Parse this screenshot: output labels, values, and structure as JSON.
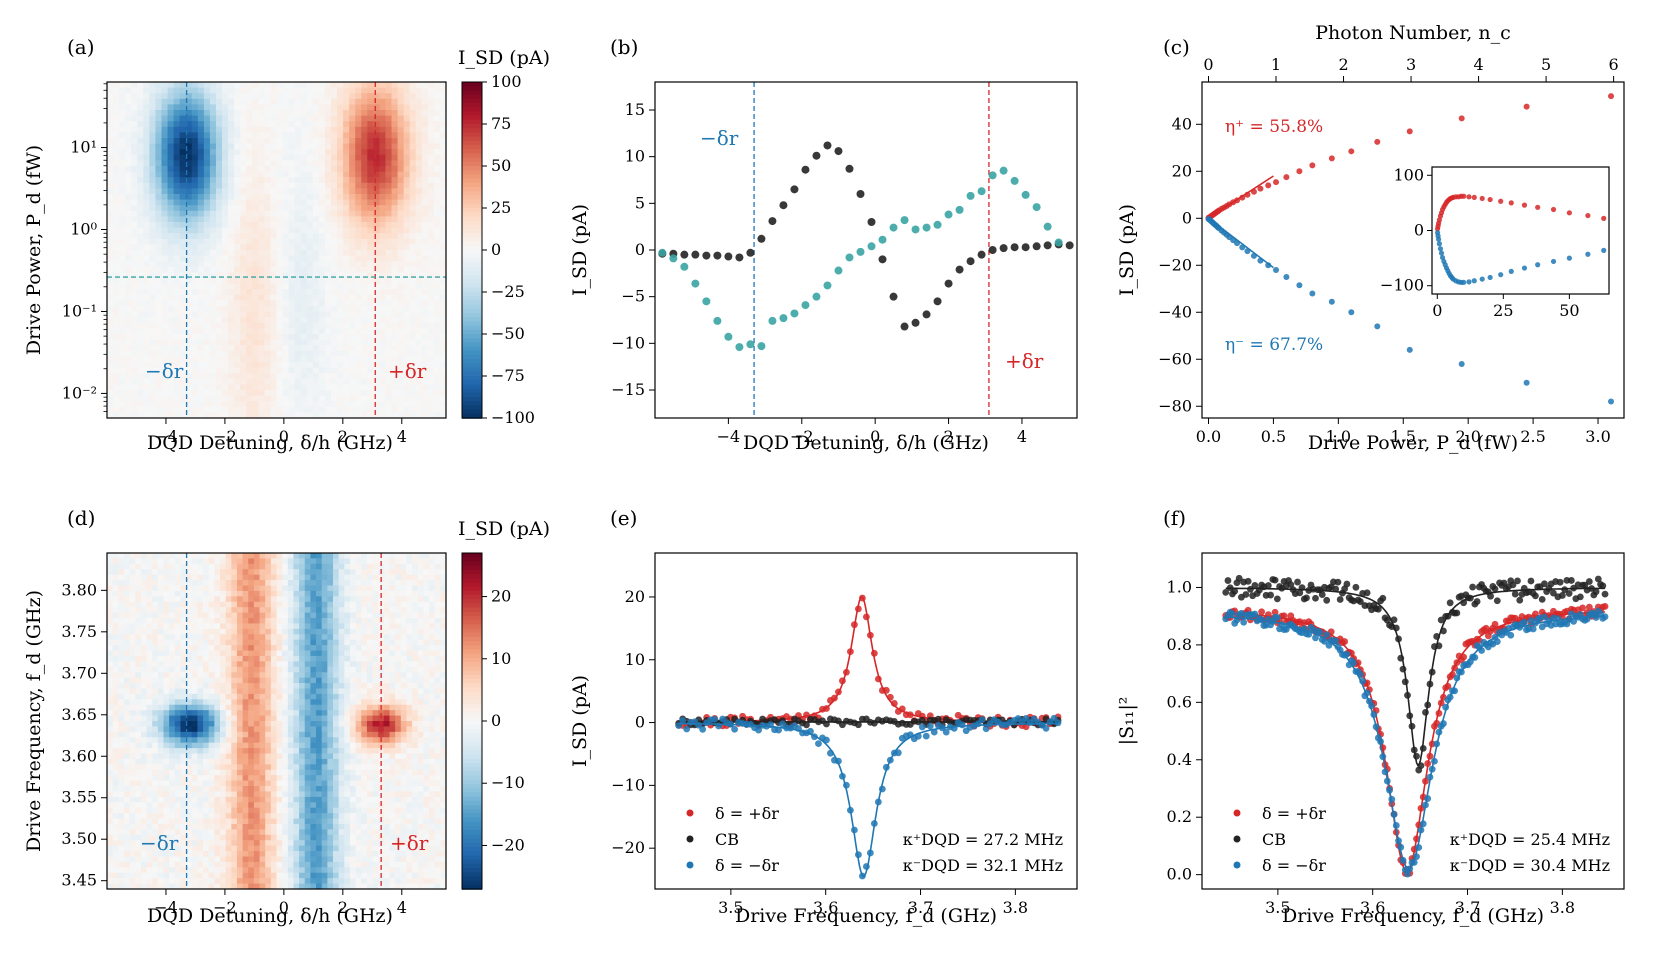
{
  "figure": {
    "colors": {
      "red": "#d62728",
      "blue": "#1f77b4",
      "teal": "#3aa3a3",
      "black": "#222222"
    }
  },
  "chart_data": [
    {
      "panel": "(a)",
      "type": "heatmap",
      "xlabel": "DQD Detuning, δ/h (GHz)",
      "ylabel": "Drive Power, P_d (fW)",
      "xlim": [
        -6,
        5.5
      ],
      "ylim_log10": [
        -2.3,
        1.8
      ],
      "xticks": [
        "−4",
        "−2",
        "0",
        "2",
        "4"
      ],
      "xtick_values": [
        -4,
        -2,
        0,
        2,
        4
      ],
      "yticks": [
        "10⁻²",
        "10⁻¹",
        "10⁰",
        "10¹"
      ],
      "ytick_values": [
        -2,
        -1,
        0,
        1
      ],
      "colorbar": {
        "label": "I_SD (pA)",
        "range": [
          -100,
          100
        ],
        "ticks": [
          "100",
          "75",
          "50",
          "25",
          "0",
          "−25",
          "−50",
          "−75",
          "−100"
        ],
        "tick_values": [
          100,
          75,
          50,
          25,
          0,
          -25,
          -50,
          -75,
          -100
        ]
      },
      "features": [
        {
          "name": "minus-blob",
          "x": -3.3,
          "y_log10": 0.9,
          "sx": 0.75,
          "sy": 0.55,
          "amp": -100
        },
        {
          "name": "plus-blob",
          "x": 3.1,
          "y_log10": 0.9,
          "sx": 0.8,
          "sy": 0.6,
          "amp": 75
        },
        {
          "name": "low-pos-stripe",
          "x": -1.0,
          "y_log10": -1.0,
          "sx": 0.6,
          "sy": 1.3,
          "amp": 14
        },
        {
          "name": "low-neg-stripe",
          "x": 0.6,
          "y_log10": -0.8,
          "sx": 0.6,
          "sy": 1.2,
          "amp": -9
        }
      ],
      "vlines": [
        {
          "x": -3.3,
          "label": "−δr",
          "color": "#1f77b4"
        },
        {
          "x": 3.1,
          "label": "+δr",
          "color": "#d62728"
        }
      ],
      "hline": {
        "y_log10": -0.58,
        "color": "#3aa3a3"
      }
    },
    {
      "panel": "(b)",
      "type": "scatter",
      "xlabel": "DQD Detuning, δ/h (GHz)",
      "ylabel": "I_SD (pA)",
      "xlim": [
        -6,
        5.5
      ],
      "ylim": [
        -18,
        18
      ],
      "xticks": [
        "−4",
        "−2",
        "0",
        "2",
        "4"
      ],
      "xtick_values": [
        -4,
        -2,
        0,
        2,
        4
      ],
      "yticks": [
        "15",
        "10",
        "5",
        "0",
        "−5",
        "−10",
        "−15"
      ],
      "ytick_values": [
        15,
        10,
        5,
        0,
        -5,
        -10,
        -15
      ],
      "vlines": [
        {
          "x": -3.3,
          "label": "−δr",
          "color": "#1f77b4"
        },
        {
          "x": 3.1,
          "label": "+δr",
          "color": "#d62728"
        }
      ],
      "series": [
        {
          "name": "black",
          "color": "#222222",
          "x": [
            -5.8,
            -5.5,
            -5.2,
            -4.9,
            -4.6,
            -4.3,
            -4.0,
            -3.7,
            -3.4,
            -3.1,
            -2.8,
            -2.5,
            -2.2,
            -1.9,
            -1.6,
            -1.3,
            -1.0,
            -0.7,
            -0.4,
            -0.1,
            0.2,
            0.5,
            0.8,
            1.1,
            1.4,
            1.7,
            2.0,
            2.3,
            2.6,
            2.9,
            3.2,
            3.5,
            3.8,
            4.1,
            4.4,
            4.7,
            5.0,
            5.3
          ],
          "y": [
            -0.4,
            -0.4,
            -0.5,
            -0.5,
            -0.6,
            -0.6,
            -0.7,
            -0.8,
            -0.3,
            1.2,
            3.1,
            4.8,
            6.5,
            8.6,
            10.1,
            11.2,
            10.6,
            8.7,
            6.0,
            3.0,
            -1.0,
            -5.0,
            -8.2,
            -7.8,
            -6.9,
            -5.5,
            -3.6,
            -2.1,
            -1.2,
            -0.5,
            0.0,
            0.2,
            0.3,
            0.3,
            0.4,
            0.5,
            0.6,
            0.5
          ]
        },
        {
          "name": "teal",
          "color": "#3aa3a3",
          "x": [
            -5.8,
            -5.5,
            -5.2,
            -4.9,
            -4.6,
            -4.3,
            -4.0,
            -3.7,
            -3.4,
            -3.1,
            -2.8,
            -2.5,
            -2.2,
            -1.9,
            -1.6,
            -1.3,
            -1.0,
            -0.7,
            -0.4,
            -0.1,
            0.2,
            0.5,
            0.8,
            1.1,
            1.4,
            1.7,
            2.0,
            2.3,
            2.6,
            2.9,
            3.2,
            3.5,
            3.8,
            4.1,
            4.4,
            4.7,
            5.0
          ],
          "y": [
            -0.3,
            -0.9,
            -1.8,
            -3.6,
            -5.5,
            -7.6,
            -9.3,
            -10.4,
            -10.1,
            -10.3,
            -7.6,
            -7.3,
            -6.8,
            -5.9,
            -5.0,
            -3.8,
            -2.2,
            -0.8,
            -0.2,
            0.4,
            1.1,
            2.4,
            3.2,
            2.2,
            2.4,
            2.7,
            3.8,
            4.3,
            5.8,
            6.3,
            8.0,
            8.5,
            7.4,
            5.9,
            4.6,
            2.5,
            0.8
          ]
        }
      ]
    },
    {
      "panel": "(c)",
      "type": "scatter",
      "xlabel": "Drive Power, P_d (fW)",
      "ylabel": "I_SD (pA)",
      "x2label": "Photon Number, n_c",
      "xlim": [
        -0.05,
        3.2
      ],
      "ylim": [
        -85,
        58
      ],
      "xticks": [
        "0.0",
        "0.5",
        "1.0",
        "1.5",
        "2.0",
        "2.5",
        "3.0"
      ],
      "xtick_values": [
        0,
        0.5,
        1,
        1.5,
        2,
        2.5,
        3
      ],
      "x2ticks": [
        "0",
        "1",
        "2",
        "3",
        "4",
        "5",
        "6"
      ],
      "x2tick_values": [
        0,
        0.52,
        1.04,
        1.56,
        2.08,
        2.6,
        3.12
      ],
      "yticks": [
        "40",
        "20",
        "0",
        "−20",
        "−40",
        "−60",
        "−80"
      ],
      "ytick_values": [
        40,
        20,
        0,
        -20,
        -40,
        -60,
        -80
      ],
      "annotations": [
        {
          "text": "η⁺ = 55.8%",
          "color": "#d62728"
        },
        {
          "text": "η⁻ = 67.7%",
          "color": "#1f77b4"
        }
      ],
      "series": [
        {
          "name": "eta-plus",
          "color": "#d62728",
          "x": [
            0.0,
            0.01,
            0.02,
            0.03,
            0.04,
            0.05,
            0.06,
            0.07,
            0.08,
            0.1,
            0.12,
            0.14,
            0.16,
            0.19,
            0.22,
            0.26,
            0.3,
            0.35,
            0.4,
            0.46,
            0.52,
            0.6,
            0.7,
            0.8,
            0.95,
            1.1,
            1.3,
            1.55,
            1.95,
            2.45,
            3.1
          ],
          "y": [
            0.2,
            0.5,
            0.9,
            1.3,
            1.7,
            2.1,
            2.5,
            2.9,
            3.3,
            4.0,
            4.6,
            5.2,
            5.9,
            6.8,
            7.6,
            8.8,
            10.0,
            11.3,
            12.6,
            14.0,
            15.4,
            17.5,
            20.0,
            22.5,
            25.5,
            28.5,
            32.5,
            37.0,
            42.5,
            47.5,
            52.0
          ]
        },
        {
          "name": "eta-minus",
          "color": "#1f77b4",
          "x": [
            0.0,
            0.01,
            0.02,
            0.03,
            0.04,
            0.05,
            0.06,
            0.07,
            0.08,
            0.1,
            0.12,
            0.14,
            0.16,
            0.19,
            0.22,
            0.26,
            0.3,
            0.35,
            0.4,
            0.46,
            0.52,
            0.6,
            0.7,
            0.8,
            0.95,
            1.1,
            1.3,
            1.55,
            1.95,
            2.45,
            3.1
          ],
          "y": [
            -0.3,
            -0.7,
            -1.2,
            -1.7,
            -2.2,
            -2.7,
            -3.2,
            -3.7,
            -4.2,
            -5.2,
            -6.1,
            -7.0,
            -8.0,
            -9.3,
            -10.6,
            -12.4,
            -14.0,
            -16.0,
            -18.0,
            -20.0,
            -22.0,
            -25.0,
            -28.5,
            -32.0,
            -35.5,
            -40.0,
            -46.0,
            -56.0,
            -62.0,
            -70.0,
            -78.0
          ]
        }
      ],
      "fit_lines": [
        {
          "color": "#d62728",
          "x": [
            0,
            0.5
          ],
          "y": [
            0,
            18
          ]
        },
        {
          "color": "#1f77b4",
          "x": [
            0,
            0.5
          ],
          "y": [
            0,
            -21
          ]
        }
      ],
      "inset": {
        "xlim": [
          -2,
          65
        ],
        "ylim": [
          -115,
          115
        ],
        "xticks": [
          "0",
          "25",
          "50"
        ],
        "xtick_values": [
          0,
          25,
          50
        ],
        "yticks": [
          "100",
          "0",
          "−100"
        ],
        "ytick_values": [
          100,
          0,
          -100
        ],
        "series": [
          {
            "color": "#d62728",
            "x": [
              0.1,
              0.3,
              0.5,
              0.8,
              1.2,
              1.6,
              2.0,
              2.5,
              3.0,
              3.5,
              4.0,
              4.5,
              5.0,
              5.5,
              6.0,
              7,
              8,
              9,
              10,
              12,
              14,
              17,
              20,
              24,
              28,
              33,
              38,
              44,
              50,
              57,
              63
            ],
            "y": [
              3,
              8,
              13,
              19,
              26,
              32,
              38,
              43,
              47,
              51,
              54,
              56,
              58,
              59,
              60,
              61,
              61,
              62,
              62,
              61,
              60,
              58,
              56,
              53,
              50,
              46,
              42,
              38,
              32,
              27,
              22
            ]
          },
          {
            "color": "#1f77b4",
            "x": [
              0.1,
              0.3,
              0.5,
              0.8,
              1.2,
              1.6,
              2.0,
              2.5,
              3.0,
              3.5,
              4.0,
              4.5,
              5.0,
              5.5,
              6.0,
              7,
              8,
              9,
              10,
              12,
              14,
              17,
              20,
              24,
              28,
              33,
              38,
              44,
              50,
              57,
              63
            ],
            "y": [
              -4,
              -10,
              -16,
              -24,
              -33,
              -41,
              -49,
              -56,
              -62,
              -68,
              -73,
              -78,
              -82,
              -85,
              -88,
              -91,
              -93,
              -94,
              -94,
              -93,
              -91,
              -88,
              -85,
              -80,
              -74,
              -68,
              -62,
              -56,
              -50,
              -43,
              -36
            ]
          }
        ]
      }
    },
    {
      "panel": "(d)",
      "type": "heatmap",
      "xlabel": "DQD Detuning, δ/h (GHz)",
      "ylabel": "Drive Frequency, f_d (GHz)",
      "xlim": [
        -6,
        5.5
      ],
      "ylim": [
        3.44,
        3.845
      ],
      "xticks": [
        "−4",
        "−2",
        "0",
        "2",
        "4"
      ],
      "xtick_values": [
        -4,
        -2,
        0,
        2,
        4
      ],
      "yticks": [
        "3.80",
        "3.75",
        "3.70",
        "3.65",
        "3.60",
        "3.55",
        "3.50",
        "3.45"
      ],
      "ytick_values": [
        3.8,
        3.75,
        3.7,
        3.65,
        3.6,
        3.55,
        3.5,
        3.45
      ],
      "colorbar": {
        "label": "I_SD (pA)",
        "range": [
          -27,
          27
        ],
        "ticks": [
          "20",
          "10",
          "0",
          "−10",
          "−20"
        ],
        "tick_values": [
          20,
          10,
          0,
          -10,
          -20
        ]
      },
      "features": [
        {
          "name": "pos-band",
          "x": -1.1,
          "sx": 0.55,
          "amp": 12
        },
        {
          "name": "neg-band",
          "x": 1.1,
          "sx": 0.55,
          "amp": -15
        },
        {
          "name": "minus-blob",
          "x": -3.2,
          "y": 3.638,
          "sx": 0.7,
          "sy": 0.018,
          "amp": -27
        },
        {
          "name": "plus-blob",
          "x": 3.3,
          "y": 3.638,
          "sx": 0.6,
          "sy": 0.016,
          "amp": 22
        }
      ],
      "vlines": [
        {
          "x": -3.3,
          "label": "−δr",
          "color": "#1f77b4"
        },
        {
          "x": 3.3,
          "label": "+δr",
          "color": "#d62728"
        }
      ]
    },
    {
      "panel": "(e)",
      "type": "scatter",
      "xlabel": "Drive Frequency, f_d (GHz)",
      "ylabel": "I_SD (pA)",
      "xlim": [
        3.42,
        3.865
      ],
      "ylim": [
        -26.5,
        27
      ],
      "xticks": [
        "3.5",
        "3.6",
        "3.7",
        "3.8"
      ],
      "xtick_values": [
        3.5,
        3.6,
        3.7,
        3.8
      ],
      "yticks": [
        "20",
        "10",
        "0",
        "−10",
        "−20"
      ],
      "ytick_values": [
        20,
        10,
        0,
        -10,
        -20
      ],
      "x_range": [
        3.445,
        3.845
      ],
      "n_points": 96,
      "series": [
        {
          "name": "δ = +δr",
          "color": "#d62728",
          "model": "lorentzian",
          "center": 3.638,
          "hwhm": 0.0136,
          "amp": 20.0,
          "offset": 0.0,
          "noise": 0.9
        },
        {
          "name": "CB",
          "color": "#222222",
          "model": "lorentzian",
          "center": 3.64,
          "hwhm": 0.02,
          "amp": 0.0,
          "offset": 0.1,
          "noise": 0.5
        },
        {
          "name": "δ = −δr",
          "color": "#1f77b4",
          "model": "lorentzian",
          "center": 3.64,
          "hwhm": 0.016,
          "amp": -24.5,
          "offset": 0.0,
          "noise": 0.9
        }
      ],
      "legend_position": "lower-left",
      "annotations": [
        "κ⁺DQD = 27.2 MHz",
        "κ⁻DQD = 32.1 MHz"
      ]
    },
    {
      "panel": "(f)",
      "type": "scatter",
      "xlabel": "Drive Frequency, f_d (GHz)",
      "ylabel": "|S₁₁|²",
      "xlim": [
        3.42,
        3.865
      ],
      "ylim": [
        -0.05,
        1.12
      ],
      "xticks": [
        "3.5",
        "3.6",
        "3.7",
        "3.8"
      ],
      "xtick_values": [
        3.5,
        3.6,
        3.7,
        3.8
      ],
      "yticks": [
        "1.0",
        "0.8",
        "0.6",
        "0.4",
        "0.2",
        "0.0"
      ],
      "ytick_values": [
        1.0,
        0.8,
        0.6,
        0.4,
        0.2,
        0.0
      ],
      "x_range": [
        3.445,
        3.845
      ],
      "n_points": 170,
      "series": [
        {
          "name": "δ = +δr",
          "color": "#d62728",
          "model": "lorentzian",
          "center": 3.636,
          "hwhm": 0.027,
          "amp": -0.92,
          "offset": 0.93,
          "noise": 0.02
        },
        {
          "name": "CB",
          "color": "#222222",
          "model": "lorentzian",
          "center": 3.648,
          "hwhm": 0.0135,
          "amp": -0.62,
          "offset": 1.0,
          "noise": 0.035
        },
        {
          "name": "δ = −δr",
          "color": "#1f77b4",
          "model": "lorentzian",
          "center": 3.638,
          "hwhm": 0.031,
          "amp": -0.9,
          "offset": 0.92,
          "noise": 0.02
        }
      ],
      "legend_position": "lower-left",
      "annotations": [
        "κ⁺DQD = 25.4 MHz",
        "κ⁻DQD = 30.4 MHz"
      ]
    }
  ]
}
